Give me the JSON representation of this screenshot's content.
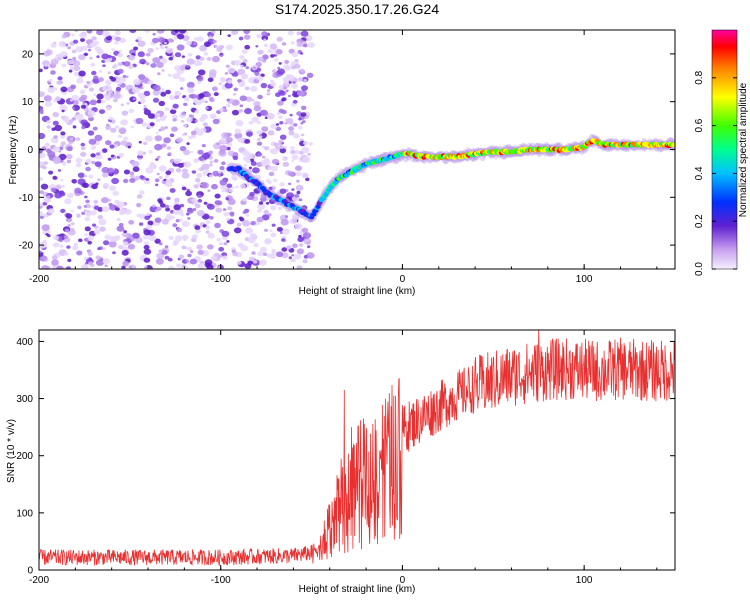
{
  "title": "S174.2025.350.17.26.G24",
  "chart_data": [
    {
      "type": "heatmap",
      "name": "spectrogram",
      "xlabel": "Height of straight line (km)",
      "ylabel": "Frequency (Hz)",
      "xlim": [
        -200,
        150
      ],
      "ylim": [
        -25,
        25
      ],
      "xticks": [
        -200,
        -100,
        0,
        100
      ],
      "yticks": [
        -20,
        -10,
        0,
        10,
        20
      ],
      "noise_region_x": [
        -200,
        -50
      ],
      "ridge": {
        "x": [
          -95,
          -90,
          -85,
          -80,
          -75,
          -70,
          -65,
          -60,
          -55,
          -50,
          -48,
          -45,
          -40,
          -35,
          -30,
          -25,
          -20,
          -15,
          -10,
          -5,
          0,
          5,
          10,
          20,
          30,
          40,
          50,
          60,
          70,
          80,
          90,
          100,
          105,
          110,
          120,
          130,
          140,
          150
        ],
        "freq": [
          -4,
          -4,
          -6,
          -7,
          -9,
          -10,
          -11,
          -12,
          -13,
          -14,
          -13,
          -11,
          -8,
          -6,
          -5,
          -4,
          -3,
          -2.5,
          -2,
          -1.5,
          -1,
          -1,
          -1.5,
          -1.5,
          -1.5,
          -1,
          -0.5,
          -0.5,
          0,
          0,
          0,
          0.5,
          2,
          1,
          1,
          1,
          1,
          1
        ]
      },
      "colorbar": {
        "label": "Normalized spectral amplitude",
        "range": [
          0,
          1
        ],
        "ticks": [
          "0.0",
          "0.2",
          "0.4",
          "0.6",
          "0.8"
        ],
        "tick_values": [
          0.0,
          0.2,
          0.4,
          0.6,
          0.8
        ]
      }
    },
    {
      "type": "line",
      "name": "snr",
      "xlabel": "Height of straight line (km)",
      "ylabel": "SNR (10 * v/v)",
      "xlim": [
        -200,
        150
      ],
      "ylim": [
        0,
        420
      ],
      "xticks": [
        -200,
        -100,
        0,
        100
      ],
      "yticks": [
        0,
        100,
        200,
        300,
        400
      ],
      "color": "#e83030",
      "series": [
        {
          "name": "SNR",
          "x": [
            -200,
            -150,
            -100,
            -60,
            -50,
            -45,
            -40,
            -35,
            -30,
            -25,
            -20,
            -15,
            -10,
            -5,
            0,
            10,
            20,
            30,
            40,
            50,
            60,
            70,
            80,
            90,
            100,
            110,
            120,
            130,
            140,
            150
          ],
          "values": [
            22,
            22,
            22,
            25,
            30,
            45,
            90,
            130,
            150,
            175,
            190,
            205,
            215,
            230,
            245,
            265,
            285,
            305,
            320,
            330,
            340,
            345,
            350,
            352,
            350,
            348,
            352,
            350,
            348,
            350
          ],
          "spikes": [
            {
              "x": -32,
              "value": 315
            },
            {
              "x": -28,
              "value": 250
            },
            {
              "x": 75,
              "value": 420
            }
          ]
        }
      ]
    }
  ]
}
